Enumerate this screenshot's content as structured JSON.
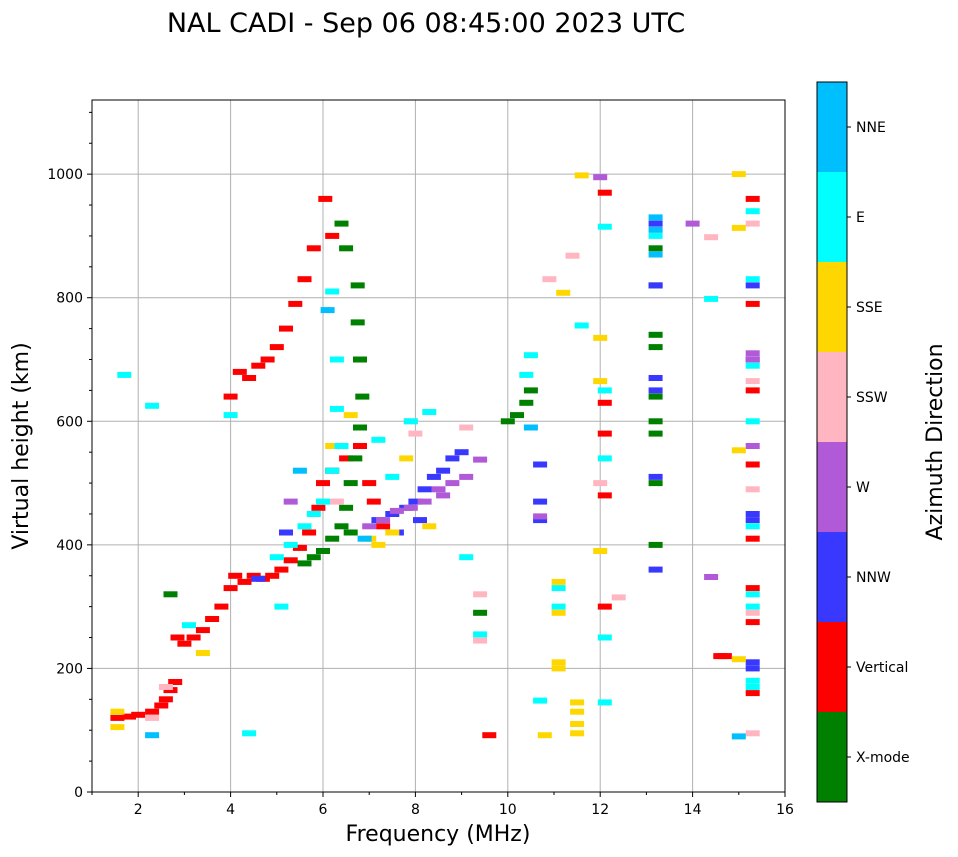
{
  "chart_data": {
    "type": "scatter",
    "title": "NAL CADI - Sep 06 08:45:00 2023 UTC",
    "xlabel": "Frequency (MHz)",
    "ylabel": "Virtual height (km)",
    "xlim": [
      1,
      16
    ],
    "ylim": [
      0,
      1120
    ],
    "xticks": [
      2,
      4,
      6,
      8,
      10,
      12,
      14,
      16
    ],
    "yticks": [
      0,
      200,
      400,
      600,
      800,
      1000
    ],
    "grid": true,
    "colorbar": {
      "label": "Azimuth Direction",
      "categories": [
        {
          "name": "NNE",
          "color": "#00bfff"
        },
        {
          "name": "E",
          "color": "#00ffff"
        },
        {
          "name": "SSE",
          "color": "#ffd700"
        },
        {
          "name": "SSW",
          "color": "#ffb6c1"
        },
        {
          "name": "W",
          "color": "#b05ad8"
        },
        {
          "name": "NNW",
          "color": "#3838ff"
        },
        {
          "name": "Vertical",
          "color": "#ff0000"
        },
        {
          "name": "X-mode",
          "color": "#008000"
        }
      ]
    },
    "series": [
      {
        "name": "Vertical",
        "points": [
          [
            1.55,
            120
          ],
          [
            1.8,
            122
          ],
          [
            2.0,
            125
          ],
          [
            2.3,
            130
          ],
          [
            2.5,
            140
          ],
          [
            2.6,
            150
          ],
          [
            2.7,
            165
          ],
          [
            2.8,
            178
          ],
          [
            2.85,
            250
          ],
          [
            3.0,
            240
          ],
          [
            3.2,
            250
          ],
          [
            3.4,
            262
          ],
          [
            3.6,
            280
          ],
          [
            3.8,
            300
          ],
          [
            4.0,
            330
          ],
          [
            4.1,
            350
          ],
          [
            4.3,
            340
          ],
          [
            4.5,
            350
          ],
          [
            4.7,
            345
          ],
          [
            4.9,
            350
          ],
          [
            5.1,
            360
          ],
          [
            5.3,
            375
          ],
          [
            5.5,
            395
          ],
          [
            5.7,
            420
          ],
          [
            5.9,
            460
          ],
          [
            6.0,
            500
          ],
          [
            6.2,
            520
          ],
          [
            6.5,
            540
          ],
          [
            6.8,
            560
          ],
          [
            7.0,
            500
          ],
          [
            7.1,
            470
          ],
          [
            7.3,
            430
          ],
          [
            4.2,
            680
          ],
          [
            4.4,
            670
          ],
          [
            4.6,
            690
          ],
          [
            4.8,
            700
          ],
          [
            5.0,
            720
          ],
          [
            5.2,
            750
          ],
          [
            5.4,
            790
          ],
          [
            5.6,
            830
          ],
          [
            5.8,
            880
          ],
          [
            6.05,
            960
          ],
          [
            4.0,
            640
          ],
          [
            6.2,
            900
          ],
          [
            12.1,
            970
          ],
          [
            12.1,
            630
          ],
          [
            12.1,
            580
          ],
          [
            12.1,
            480
          ],
          [
            12.1,
            300
          ],
          [
            15.3,
            960
          ],
          [
            15.3,
            790
          ],
          [
            15.3,
            650
          ],
          [
            15.3,
            530
          ],
          [
            15.3,
            410
          ],
          [
            15.3,
            330
          ],
          [
            15.3,
            275
          ],
          [
            15.3,
            160
          ],
          [
            14.6,
            220
          ],
          [
            14.7,
            220
          ],
          [
            9.6,
            92
          ]
        ]
      },
      {
        "name": "X-mode",
        "points": [
          [
            5.6,
            370
          ],
          [
            5.8,
            380
          ],
          [
            6.0,
            390
          ],
          [
            6.2,
            410
          ],
          [
            6.4,
            430
          ],
          [
            6.5,
            460
          ],
          [
            6.6,
            500
          ],
          [
            6.7,
            540
          ],
          [
            6.8,
            590
          ],
          [
            6.85,
            640
          ],
          [
            6.8,
            700
          ],
          [
            6.75,
            760
          ],
          [
            6.75,
            820
          ],
          [
            6.5,
            880
          ],
          [
            6.4,
            920
          ],
          [
            6.6,
            420
          ],
          [
            10.0,
            600
          ],
          [
            10.2,
            610
          ],
          [
            10.4,
            630
          ],
          [
            10.5,
            650
          ],
          [
            13.2,
            720
          ],
          [
            13.2,
            740
          ],
          [
            13.2,
            640
          ],
          [
            13.2,
            600
          ],
          [
            13.2,
            580
          ],
          [
            13.2,
            500
          ],
          [
            13.2,
            400
          ],
          [
            13.2,
            880
          ],
          [
            13.2,
            820
          ],
          [
            9.4,
            290
          ],
          [
            2.7,
            320
          ]
        ]
      },
      {
        "name": "NNW",
        "points": [
          [
            7.2,
            440
          ],
          [
            7.5,
            450
          ],
          [
            7.8,
            460
          ],
          [
            8.0,
            470
          ],
          [
            8.2,
            490
          ],
          [
            8.4,
            510
          ],
          [
            8.6,
            520
          ],
          [
            8.8,
            540
          ],
          [
            9.0,
            550
          ],
          [
            8.1,
            440
          ],
          [
            7.6,
            420
          ],
          [
            10.7,
            530
          ],
          [
            10.7,
            470
          ],
          [
            10.7,
            440
          ],
          [
            13.2,
            650
          ],
          [
            13.2,
            670
          ],
          [
            13.2,
            820
          ],
          [
            13.2,
            920
          ],
          [
            13.2,
            360
          ],
          [
            13.2,
            510
          ],
          [
            15.3,
            450
          ],
          [
            15.3,
            440
          ],
          [
            15.3,
            210
          ],
          [
            15.3,
            200
          ],
          [
            15.3,
            700
          ],
          [
            15.3,
            820
          ],
          [
            5.2,
            420
          ],
          [
            4.6,
            345
          ]
        ]
      },
      {
        "name": "W",
        "points": [
          [
            7.0,
            430
          ],
          [
            7.3,
            440
          ],
          [
            7.6,
            455
          ],
          [
            7.9,
            460
          ],
          [
            8.2,
            470
          ],
          [
            8.5,
            490
          ],
          [
            8.8,
            500
          ],
          [
            9.1,
            510
          ],
          [
            9.4,
            538
          ],
          [
            8.6,
            480
          ],
          [
            14.0,
            920
          ],
          [
            14.4,
            348
          ],
          [
            15.3,
            710
          ],
          [
            15.3,
            700
          ],
          [
            12.0,
            995
          ],
          [
            10.7,
            446
          ],
          [
            15.3,
            560
          ],
          [
            5.3,
            470
          ]
        ]
      },
      {
        "name": "SSW",
        "points": [
          [
            2.6,
            170
          ],
          [
            2.3,
            120
          ],
          [
            7.9,
            600
          ],
          [
            8.0,
            580
          ],
          [
            9.1,
            590
          ],
          [
            9.4,
            320
          ],
          [
            9.4,
            245
          ],
          [
            10.9,
            830
          ],
          [
            11.4,
            868
          ],
          [
            12.0,
            500
          ],
          [
            12.4,
            315
          ],
          [
            14.4,
            898
          ],
          [
            15.3,
            920
          ],
          [
            15.3,
            665
          ],
          [
            15.3,
            490
          ],
          [
            15.3,
            290
          ],
          [
            15.3,
            95
          ],
          [
            6.3,
            470
          ]
        ]
      },
      {
        "name": "SSE",
        "points": [
          [
            1.55,
            105
          ],
          [
            1.55,
            130
          ],
          [
            7.0,
            410
          ],
          [
            7.2,
            400
          ],
          [
            7.5,
            420
          ],
          [
            7.8,
            540
          ],
          [
            8.3,
            430
          ],
          [
            10.8,
            92
          ],
          [
            11.1,
            200
          ],
          [
            11.1,
            210
          ],
          [
            11.1,
            290
          ],
          [
            11.1,
            340
          ],
          [
            11.5,
            95
          ],
          [
            11.5,
            110
          ],
          [
            11.5,
            130
          ],
          [
            11.5,
            145
          ],
          [
            11.2,
            808
          ],
          [
            11.6,
            998
          ],
          [
            12.0,
            735
          ],
          [
            12.0,
            665
          ],
          [
            12.0,
            390
          ],
          [
            15.0,
            215
          ],
          [
            15.0,
            913
          ],
          [
            15.0,
            553
          ],
          [
            15.0,
            1000
          ],
          [
            6.2,
            560
          ],
          [
            6.6,
            610
          ],
          [
            3.4,
            225
          ]
        ]
      },
      {
        "name": "E",
        "points": [
          [
            5.0,
            380
          ],
          [
            5.3,
            400
          ],
          [
            5.6,
            430
          ],
          [
            5.8,
            450
          ],
          [
            6.0,
            470
          ],
          [
            6.2,
            520
          ],
          [
            6.4,
            560
          ],
          [
            6.3,
            620
          ],
          [
            6.2,
            810
          ],
          [
            6.3,
            700
          ],
          [
            7.2,
            570
          ],
          [
            7.5,
            510
          ],
          [
            7.9,
            600
          ],
          [
            8.3,
            615
          ],
          [
            9.1,
            380
          ],
          [
            9.4,
            255
          ],
          [
            10.4,
            675
          ],
          [
            10.5,
            707
          ],
          [
            10.7,
            148
          ],
          [
            11.1,
            300
          ],
          [
            11.1,
            330
          ],
          [
            11.6,
            755
          ],
          [
            12.1,
            650
          ],
          [
            12.1,
            540
          ],
          [
            12.1,
            250
          ],
          [
            12.1,
            145
          ],
          [
            12.1,
            915
          ],
          [
            13.2,
            900
          ],
          [
            14.4,
            798
          ],
          [
            15.3,
            940
          ],
          [
            15.3,
            830
          ],
          [
            15.3,
            690
          ],
          [
            15.3,
            600
          ],
          [
            15.3,
            430
          ],
          [
            15.3,
            320
          ],
          [
            15.3,
            300
          ],
          [
            15.3,
            180
          ],
          [
            15.3,
            170
          ],
          [
            1.7,
            675
          ],
          [
            2.3,
            625
          ],
          [
            3.1,
            270
          ],
          [
            4.4,
            95
          ],
          [
            5.1,
            300
          ],
          [
            4.0,
            610
          ]
        ]
      },
      {
        "name": "NNE",
        "points": [
          [
            15.0,
            90
          ],
          [
            13.2,
            930
          ],
          [
            13.2,
            910
          ],
          [
            13.2,
            870
          ],
          [
            6.1,
            780
          ],
          [
            5.5,
            520
          ],
          [
            6.9,
            410
          ],
          [
            10.5,
            590
          ],
          [
            2.3,
            92
          ]
        ]
      }
    ]
  }
}
